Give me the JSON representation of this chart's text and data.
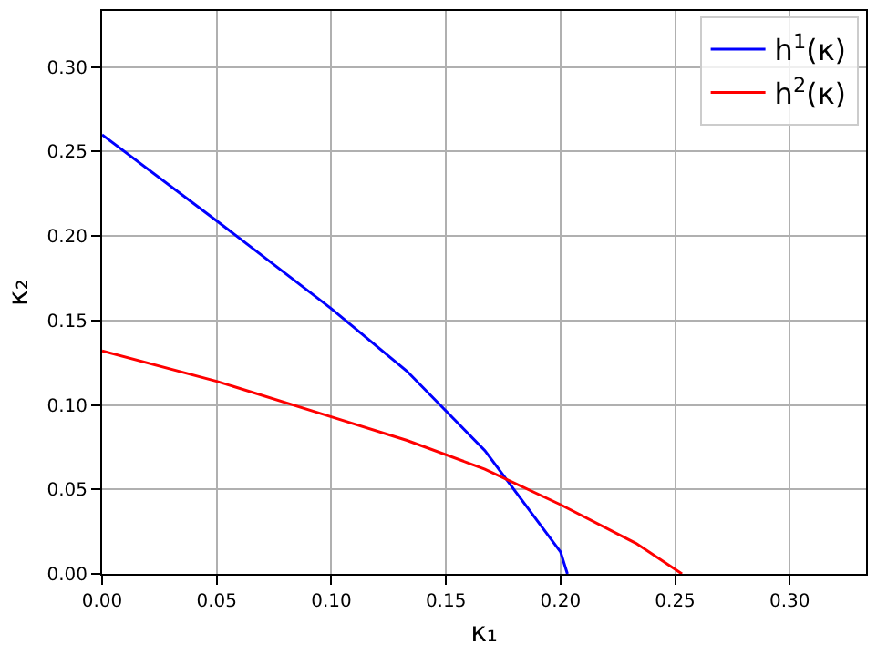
{
  "chart_data": {
    "type": "line",
    "xlabel": "κ₁",
    "ylabel": "κ₂",
    "xlim": [
      0,
      0.3333
    ],
    "ylim": [
      0,
      0.3333
    ],
    "xticks": [
      {
        "value": 0,
        "label": "0.00"
      },
      {
        "value": 0.05,
        "label": "0.05"
      },
      {
        "value": 0.1,
        "label": "0.10"
      },
      {
        "value": 0.15,
        "label": "0.15"
      },
      {
        "value": 0.2,
        "label": "0.20"
      },
      {
        "value": 0.25,
        "label": "0.25"
      },
      {
        "value": 0.3,
        "label": "0.30"
      }
    ],
    "yticks": [
      {
        "value": 0,
        "label": "0.00"
      },
      {
        "value": 0.05,
        "label": "0.05"
      },
      {
        "value": 0.1,
        "label": "0.10"
      },
      {
        "value": 0.15,
        "label": "0.15"
      },
      {
        "value": 0.2,
        "label": "0.20"
      },
      {
        "value": 0.25,
        "label": "0.25"
      },
      {
        "value": 0.3,
        "label": "0.30"
      }
    ],
    "grid": true,
    "legend": "top right",
    "series": [
      {
        "name": "h$^{1}$(κ)",
        "color": "#0000ff",
        "x": [
          0,
          0.05,
          0.1,
          0.133,
          0.167,
          0.2,
          0.203
        ],
        "values": [
          0.26,
          0.209,
          0.157,
          0.12,
          0.073,
          0.013,
          0
        ]
      },
      {
        "name": "h$^{2}$(κ)",
        "color": "#ff0000",
        "x": [
          0,
          0.05,
          0.1,
          0.133,
          0.167,
          0.2,
          0.233,
          0.253
        ],
        "values": [
          0.132,
          0.114,
          0.093,
          0.079,
          0.062,
          0.041,
          0.018,
          0
        ]
      }
    ]
  }
}
